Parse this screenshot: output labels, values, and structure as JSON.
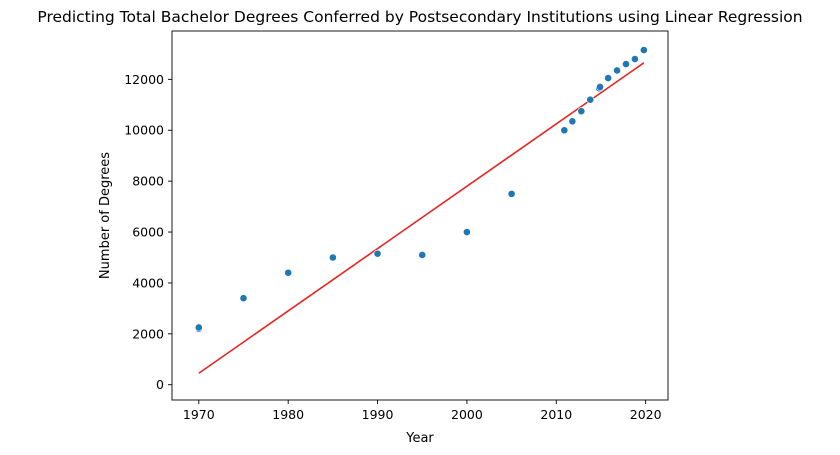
{
  "chart_data": {
    "type": "scatter",
    "title": "Predicting Total Bachelor Degrees Conferred by Postsecondary Institutions using Linear Regression",
    "xlabel": "Year",
    "ylabel": "Number of Degrees",
    "xlim": [
      1967,
      2022.5
    ],
    "ylim": [
      -600,
      13900
    ],
    "xticks": [
      1970,
      1980,
      1990,
      2000,
      2010,
      2020
    ],
    "yticks": [
      0,
      2000,
      4000,
      6000,
      8000,
      10000,
      12000
    ],
    "grid": false,
    "colors": {
      "points": "#1f77b4",
      "regression": "#e8251e"
    },
    "points": [
      {
        "x": 1970,
        "y": 2200
      },
      {
        "x": 1970,
        "y": 2250
      },
      {
        "x": 1975,
        "y": 3400
      },
      {
        "x": 1980,
        "y": 4400
      },
      {
        "x": 1985,
        "y": 5000
      },
      {
        "x": 1990,
        "y": 5150
      },
      {
        "x": 1995,
        "y": 5100
      },
      {
        "x": 2000,
        "y": 6000
      },
      {
        "x": 2005,
        "y": 7500
      },
      {
        "x": 2010.9,
        "y": 10000
      },
      {
        "x": 2011.8,
        "y": 10350
      },
      {
        "x": 2012.8,
        "y": 10750
      },
      {
        "x": 2013.8,
        "y": 11200
      },
      {
        "x": 2014.8,
        "y": 11650
      },
      {
        "x": 2014.9,
        "y": 11700
      },
      {
        "x": 2015.8,
        "y": 12050
      },
      {
        "x": 2016.8,
        "y": 12350
      },
      {
        "x": 2017.8,
        "y": 12600
      },
      {
        "x": 2018.8,
        "y": 12800
      },
      {
        "x": 2019.8,
        "y": 13150
      }
    ],
    "regression_line": [
      {
        "x": 1970,
        "y": 450
      },
      {
        "x": 2019.8,
        "y": 12650
      }
    ]
  }
}
